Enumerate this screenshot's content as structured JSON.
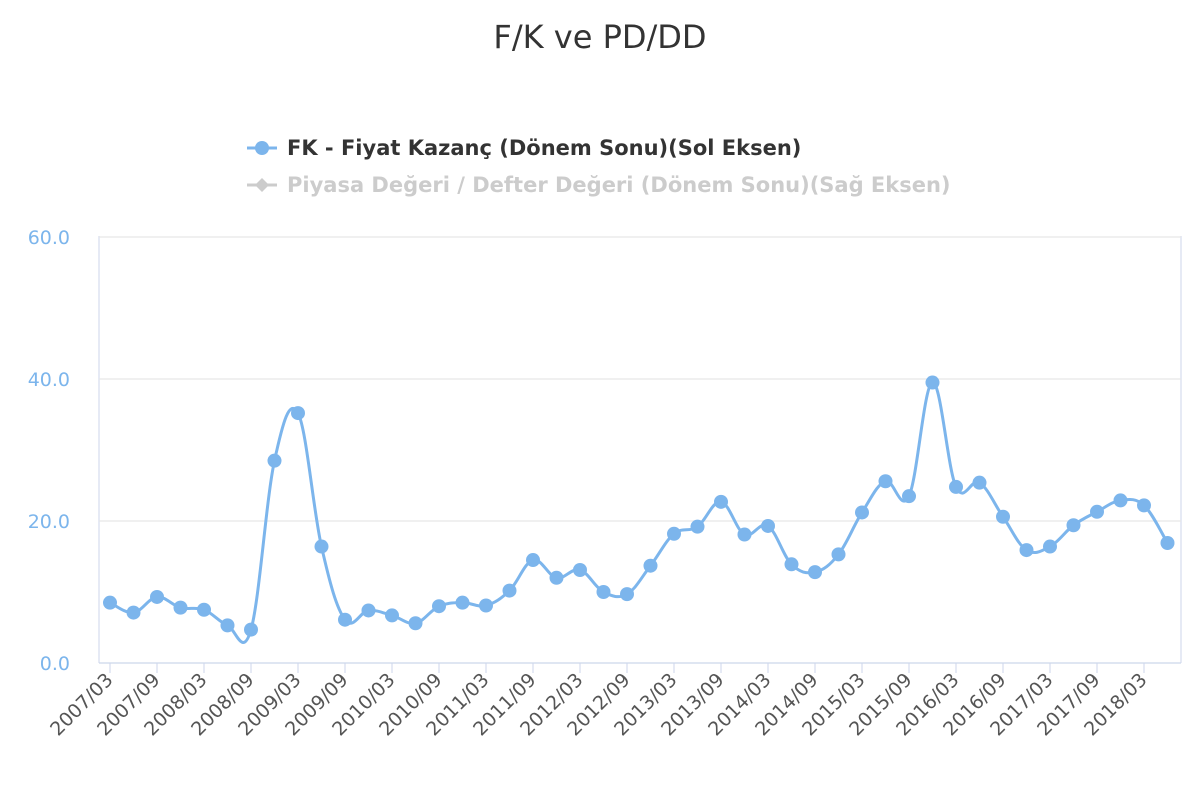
{
  "chart_data": {
    "type": "line",
    "title": "F/K ve PD/DD",
    "legend": [
      {
        "name": "FK - Fiyat Kazanç (Dönem Sonu)(Sol Eksen)",
        "visible": true,
        "color": "#7cb5ec"
      },
      {
        "name": "Piyasa Değeri / Defter Değeri (Dönem Sonu)(Sağ Eksen)",
        "visible": false,
        "color": "#cccccc"
      }
    ],
    "legend_position": "top-center",
    "yticks": [
      "0.0",
      "20.0",
      "40.0",
      "60.0"
    ],
    "ylim": [
      0,
      60
    ],
    "grid": true,
    "xticks": [
      "2007/03",
      "2007/09",
      "2008/03",
      "2008/09",
      "2009/03",
      "2009/09",
      "2010/03",
      "2010/09",
      "2011/03",
      "2011/09",
      "2012/03",
      "2012/09",
      "2013/03",
      "2013/09",
      "2014/03",
      "2014/09",
      "2015/03",
      "2015/09",
      "2016/03",
      "2016/09",
      "2017/03",
      "2017/09",
      "2018/03"
    ],
    "x": [
      "2007/03",
      "2007/06",
      "2007/09",
      "2007/12",
      "2008/03",
      "2008/06",
      "2008/09",
      "2008/12",
      "2009/03",
      "2009/06",
      "2009/09",
      "2009/12",
      "2010/03",
      "2010/06",
      "2010/09",
      "2010/12",
      "2011/03",
      "2011/06",
      "2011/09",
      "2011/12",
      "2012/03",
      "2012/06",
      "2012/09",
      "2012/12",
      "2013/03",
      "2013/06",
      "2013/09",
      "2013/12",
      "2014/03",
      "2014/06",
      "2014/09",
      "2014/12",
      "2015/03",
      "2015/06",
      "2015/09",
      "2015/12",
      "2016/03",
      "2016/06",
      "2016/09",
      "2016/12",
      "2017/03",
      "2017/06",
      "2017/09",
      "2017/12",
      "2018/03",
      "2018/06"
    ],
    "series": [
      {
        "name": "FK - Fiyat Kazanç (Dönem Sonu)(Sol Eksen)",
        "color": "#7cb5ec",
        "values": [
          8.5,
          7.1,
          9.3,
          7.8,
          7.5,
          5.3,
          4.7,
          28.5,
          35.2,
          16.4,
          6.1,
          7.4,
          6.7,
          5.6,
          8.0,
          8.5,
          8.1,
          10.2,
          14.5,
          12.0,
          13.1,
          10.0,
          9.7,
          13.7,
          18.2,
          19.2,
          22.7,
          18.1,
          19.3,
          13.9,
          12.8,
          15.3,
          21.2,
          25.6,
          23.5,
          39.5,
          24.8,
          25.4,
          20.6,
          15.9,
          16.4,
          19.4,
          21.3,
          22.9,
          22.2,
          16.9
        ]
      }
    ]
  }
}
